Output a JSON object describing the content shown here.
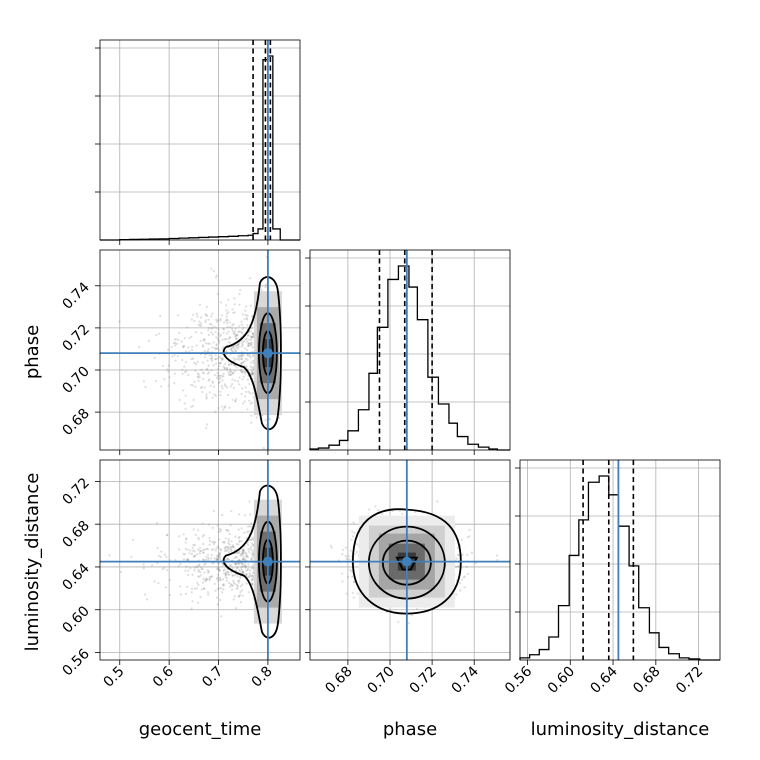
{
  "chart_data": {
    "type": "corner",
    "parameters": [
      "geocent_time",
      "phase",
      "luminosity_distance"
    ],
    "truths": {
      "geocent_time": 0.8,
      "phase": 0.708,
      "luminosity_distance": 0.645
    },
    "ranges": {
      "geocent_time": [
        0.46,
        0.865
      ],
      "phase": [
        0.662,
        0.757
      ],
      "luminosity_distance": [
        0.553,
        0.74
      ]
    },
    "ticks": {
      "geocent_time": [
        "0.5",
        "0.6",
        "0.7",
        "0.8"
      ],
      "phase": [
        "0.68",
        "0.70",
        "0.72",
        "0.74"
      ],
      "luminosity_distance": [
        "0.56",
        "0.60",
        "0.64",
        "0.68",
        "0.72"
      ]
    },
    "marginals": {
      "geocent_time": {
        "bin_edges": [
          0.46,
          0.48,
          0.5,
          0.52,
          0.54,
          0.56,
          0.58,
          0.6,
          0.62,
          0.64,
          0.66,
          0.68,
          0.7,
          0.72,
          0.74,
          0.76,
          0.77,
          0.78,
          0.79,
          0.8,
          0.81,
          0.825,
          0.865
        ],
        "counts": [
          0,
          0,
          0.2,
          0.3,
          0.4,
          0.5,
          0.6,
          0.8,
          1.0,
          1.2,
          1.4,
          1.6,
          1.8,
          2.0,
          2.3,
          2.6,
          3.5,
          6,
          98,
          100,
          6,
          0
        ],
        "quantiles": [
          0.77,
          0.795,
          0.805
        ]
      },
      "phase": {
        "bin_edges": [
          0.662,
          0.666,
          0.671,
          0.676,
          0.68,
          0.685,
          0.69,
          0.694,
          0.699,
          0.704,
          0.709,
          0.713,
          0.718,
          0.723,
          0.728,
          0.732,
          0.737,
          0.742,
          0.747,
          0.751,
          0.757
        ],
        "counts": [
          0.5,
          1,
          2.5,
          5,
          10,
          21,
          40,
          64,
          89,
          96,
          85,
          68,
          38,
          24,
          14,
          7,
          3,
          1.5,
          0.5,
          0
        ],
        "quantiles": [
          0.695,
          0.707,
          0.72
        ]
      },
      "luminosity_distance": {
        "bin_edges": [
          0.553,
          0.562,
          0.571,
          0.58,
          0.589,
          0.599,
          0.608,
          0.617,
          0.627,
          0.636,
          0.645,
          0.655,
          0.664,
          0.674,
          0.683,
          0.692,
          0.702,
          0.711,
          0.721,
          0.73,
          0.74
        ],
        "counts": [
          1,
          2.5,
          5,
          11,
          26,
          50,
          67,
          85,
          88,
          79,
          64,
          45,
          25,
          13,
          6,
          3,
          1,
          0.5,
          0,
          0
        ],
        "quantiles": [
          0.612,
          0.636,
          0.659
        ]
      }
    }
  }
}
